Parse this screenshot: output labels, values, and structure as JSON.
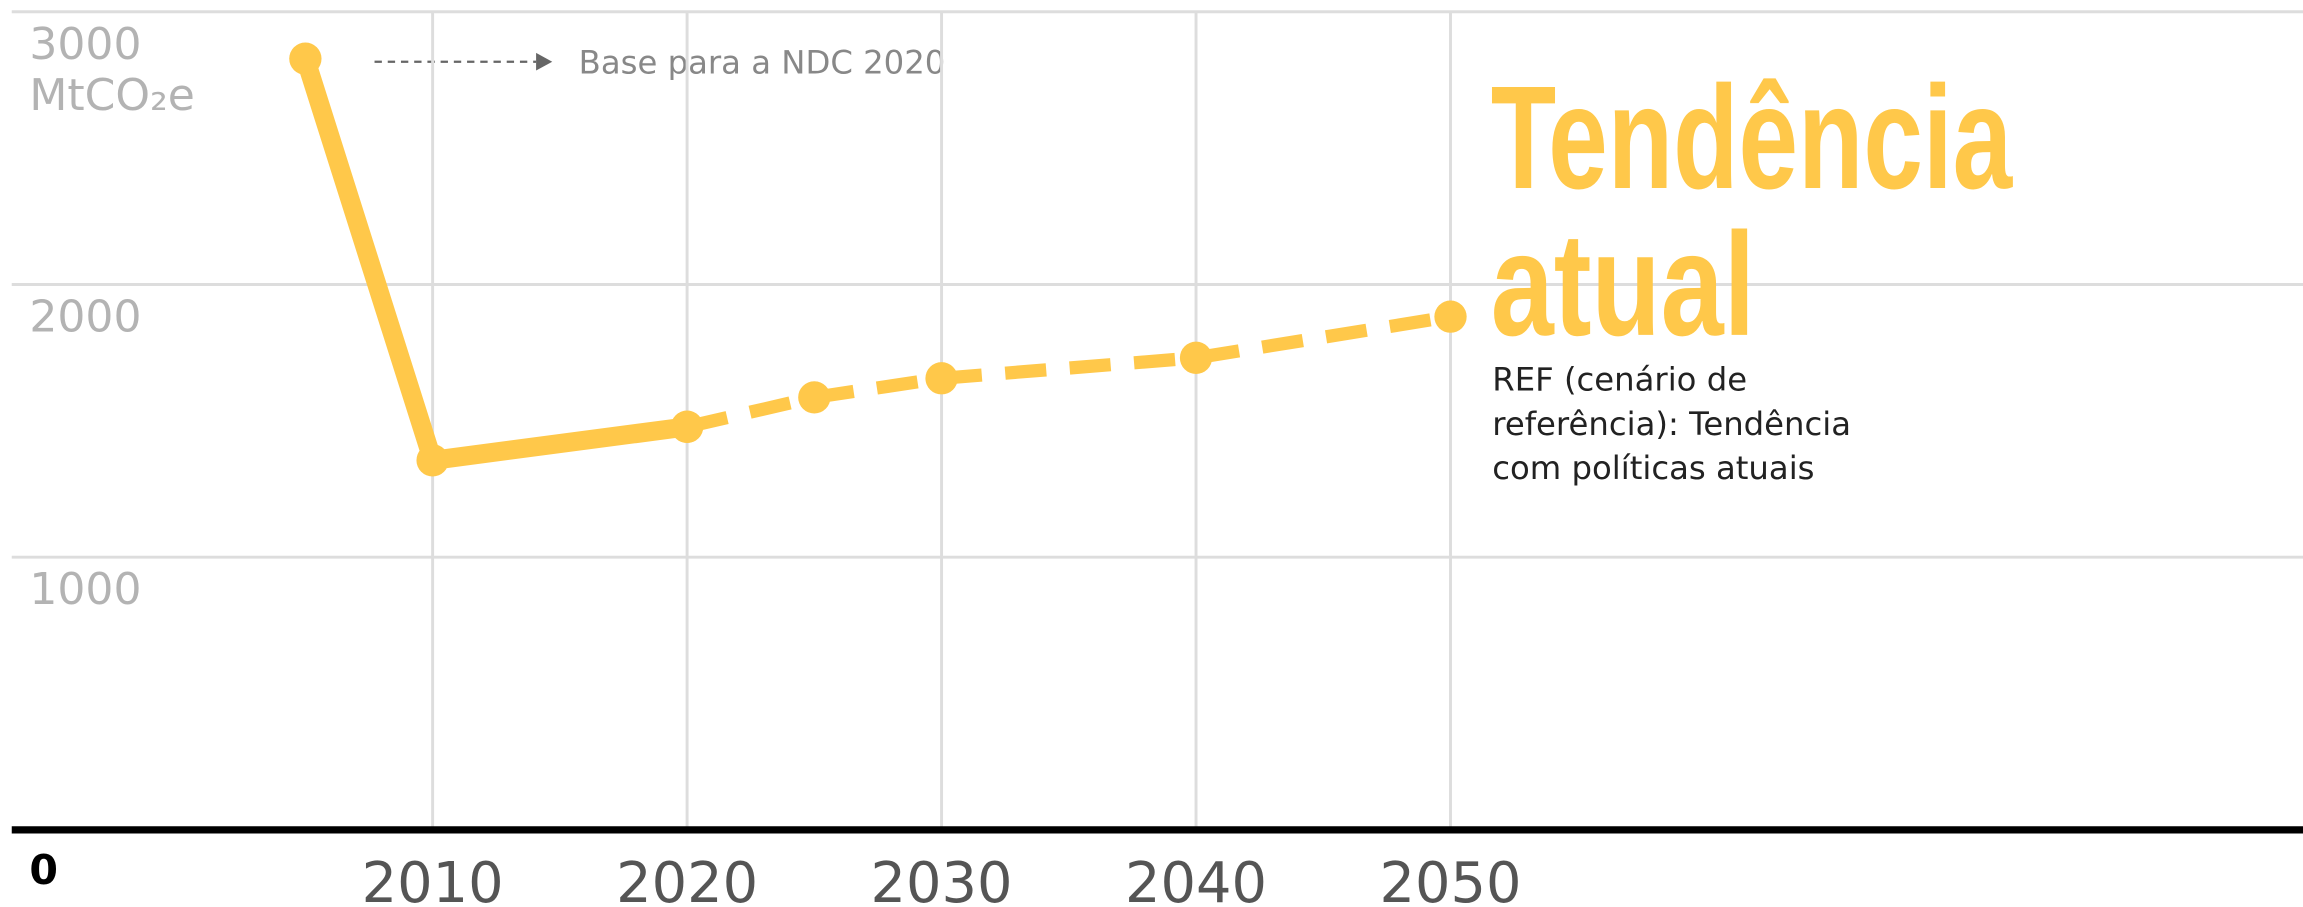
{
  "chart_data": {
    "type": "line",
    "y_unit": "MtCO₂e",
    "xlim": [
      1993,
      2083.5
    ],
    "ylim": [
      0,
      3000
    ],
    "xticks": [
      2010,
      2020,
      2030,
      2040,
      2050
    ],
    "yticks": [
      0,
      1000,
      2000,
      3000
    ],
    "grid": true,
    "color": "#ffc84a",
    "series": [
      {
        "x": [
          2005,
          2010,
          2020
        ],
        "values": [
          2828,
          1355,
          1478
        ],
        "dashed": false
      },
      {
        "x": [
          2020,
          2025,
          2030,
          2040,
          2050
        ],
        "values": [
          1478,
          1586,
          1656,
          1731,
          1882
        ],
        "dashed": true
      }
    ],
    "annotation": "Base para a NDC 2020",
    "label_title": [
      "Tendência",
      "atual"
    ],
    "label_text": [
      "REF (cenário de",
      "referência): Tendência",
      "com políticas atuais"
    ]
  }
}
